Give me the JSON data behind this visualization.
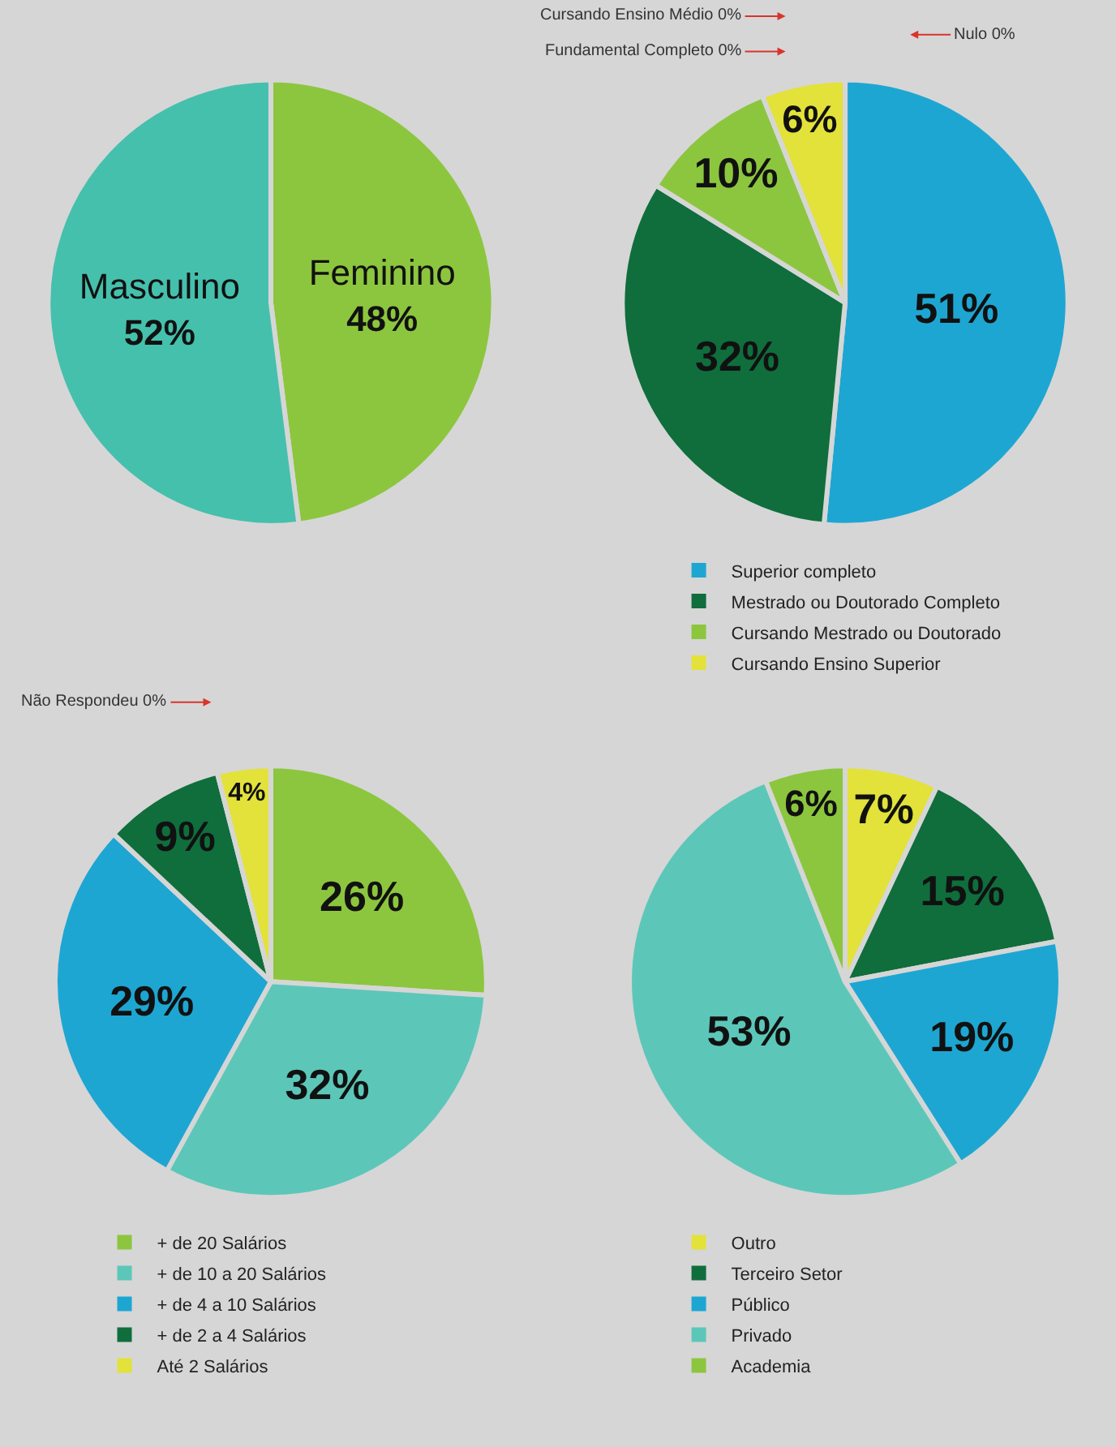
{
  "chart_data": [
    {
      "type": "pie",
      "categories": [
        "Feminino",
        "Masculino"
      ],
      "values": [
        48,
        52
      ],
      "colors": [
        "#8cc63e",
        "#45c0ad"
      ],
      "value_labels": [
        "48%",
        "52%"
      ],
      "legend": false
    },
    {
      "type": "pie",
      "categories": [
        "Superior completo",
        "Mestrado ou Doutorado Completo",
        "Cursando Mestrado ou Doutorado",
        "Cursando Ensino Superior"
      ],
      "values": [
        51,
        32,
        10,
        6
      ],
      "colors": [
        "#1ea6d2",
        "#0f6e3c",
        "#8cc63e",
        "#e2e23a"
      ],
      "value_labels": [
        "51%",
        "32%",
        "10%",
        "6%"
      ],
      "legend": "bottom",
      "annotations": [
        "Cursando Ensino Médio 0%",
        "Fundamental Completo 0%",
        "Nulo 0%"
      ]
    },
    {
      "type": "pie",
      "categories": [
        "+ de 20 Salários",
        "+ de 10 a 20 Salários",
        "+ de 4 a 10 Salários",
        "+ de 2 a 4 Salários",
        "Até 2 Salários"
      ],
      "values": [
        26,
        32,
        29,
        9,
        4
      ],
      "colors": [
        "#8cc63e",
        "#5cc7b8",
        "#1ea6d2",
        "#0f6e3c",
        "#e2e23a"
      ],
      "value_labels": [
        "26%",
        "32%",
        "29%",
        "9%",
        "4%"
      ],
      "legend": "bottom",
      "annotations": [
        "Não Respondeu 0%"
      ]
    },
    {
      "type": "pie",
      "categories": [
        "Outro",
        "Terceiro Setor",
        "Público",
        "Privado",
        "Academia"
      ],
      "values": [
        7,
        15,
        19,
        53,
        6
      ],
      "colors": [
        "#e2e23a",
        "#0f6e3c",
        "#1ea6d2",
        "#5cc7b8",
        "#8cc63e"
      ],
      "value_labels": [
        "7%",
        "15%",
        "19%",
        "53%",
        "6%"
      ],
      "legend": "bottom"
    }
  ]
}
